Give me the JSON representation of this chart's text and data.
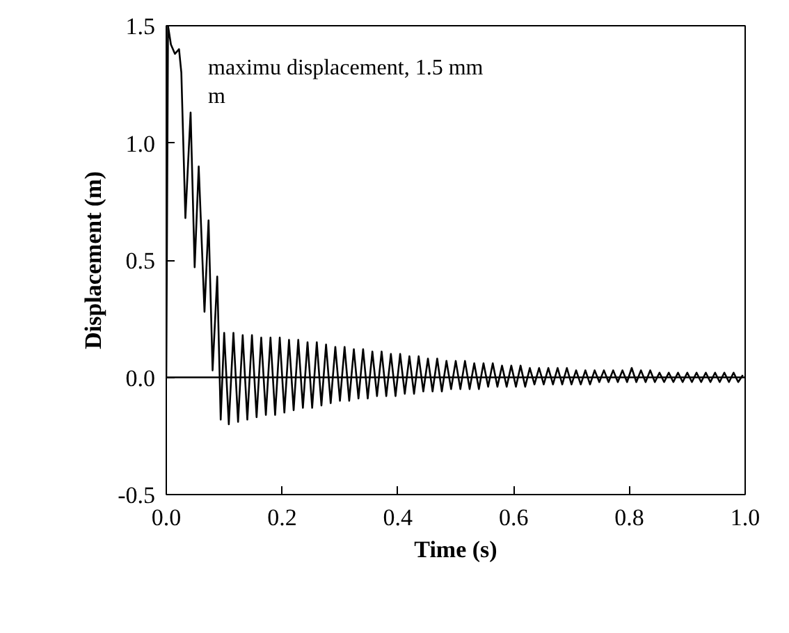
{
  "chart_data": {
    "type": "line",
    "xlabel": "Time (s)",
    "ylabel": "Displacement (m)",
    "annotations": [
      "maximu  displacement,  1.5 mm\nm"
    ],
    "xlim": [
      0,
      1
    ],
    "ylim": [
      -0.5,
      1.5
    ],
    "xticks": [
      {
        "value": 0,
        "label": "0.0"
      },
      {
        "value": 0.2,
        "label": "0.2"
      },
      {
        "value": 0.4,
        "label": "0.4"
      },
      {
        "value": 0.6,
        "label": "0.6"
      },
      {
        "value": 0.8,
        "label": "0.8"
      },
      {
        "value": 1,
        "label": "1.0"
      }
    ],
    "yticks": [
      {
        "value": -0.5,
        "label": "-0.5"
      },
      {
        "value": 0,
        "label": "0.0"
      },
      {
        "value": 0.5,
        "label": "0.5"
      },
      {
        "value": 1,
        "label": "1.0"
      },
      {
        "value": 1.5,
        "label": "1.5"
      }
    ],
    "ref_lines": [
      {
        "axis": "y",
        "value": 0,
        "color": "#000000"
      }
    ],
    "grid": false,
    "marker": "none",
    "line_style": "solid",
    "series": [
      {
        "color": "#000000",
        "x": [
          0,
          0.003,
          0.008,
          0.015,
          0.022,
          0.026,
          0.033,
          0.042,
          0.049,
          0.056,
          0.066,
          0.073,
          0.08,
          0.088,
          0.094,
          0.1,
          0.108,
          0.116,
          0.124,
          0.132,
          0.14,
          0.148,
          0.156,
          0.164,
          0.172,
          0.18,
          0.188,
          0.196,
          0.204,
          0.212,
          0.22,
          0.228,
          0.236,
          0.244,
          0.252,
          0.26,
          0.268,
          0.276,
          0.284,
          0.292,
          0.3,
          0.308,
          0.316,
          0.324,
          0.332,
          0.34,
          0.348,
          0.356,
          0.364,
          0.372,
          0.38,
          0.388,
          0.396,
          0.404,
          0.412,
          0.42,
          0.428,
          0.436,
          0.444,
          0.452,
          0.46,
          0.468,
          0.476,
          0.484,
          0.492,
          0.5,
          0.508,
          0.516,
          0.524,
          0.532,
          0.54,
          0.548,
          0.556,
          0.564,
          0.572,
          0.58,
          0.588,
          0.596,
          0.604,
          0.612,
          0.62,
          0.628,
          0.636,
          0.644,
          0.652,
          0.66,
          0.668,
          0.676,
          0.684,
          0.692,
          0.7,
          0.708,
          0.716,
          0.724,
          0.732,
          0.74,
          0.748,
          0.756,
          0.764,
          0.772,
          0.78,
          0.788,
          0.796,
          0.804,
          0.812,
          0.82,
          0.828,
          0.836,
          0.844,
          0.852,
          0.86,
          0.868,
          0.876,
          0.884,
          0.892,
          0.9,
          0.908,
          0.916,
          0.924,
          0.932,
          0.94,
          0.948,
          0.956,
          0.964,
          0.972,
          0.98,
          0.988,
          0.996
        ],
        "values": [
          0,
          1.5,
          1.42,
          1.38,
          1.4,
          1.3,
          0.68,
          1.13,
          0.47,
          0.9,
          0.28,
          0.67,
          0.03,
          0.43,
          -0.18,
          0.19,
          -0.2,
          0.19,
          -0.19,
          0.18,
          -0.18,
          0.18,
          -0.17,
          0.17,
          -0.16,
          0.17,
          -0.16,
          0.17,
          -0.15,
          0.16,
          -0.14,
          0.16,
          -0.13,
          0.15,
          -0.13,
          0.15,
          -0.12,
          0.14,
          -0.11,
          0.13,
          -0.1,
          0.13,
          -0.1,
          0.12,
          -0.09,
          0.12,
          -0.09,
          0.11,
          -0.08,
          0.11,
          -0.08,
          0.1,
          -0.08,
          0.1,
          -0.07,
          0.09,
          -0.07,
          0.09,
          -0.06,
          0.08,
          -0.06,
          0.08,
          -0.06,
          0.07,
          -0.05,
          0.07,
          -0.05,
          0.07,
          -0.05,
          0.06,
          -0.05,
          0.06,
          -0.04,
          0.06,
          -0.04,
          0.05,
          -0.04,
          0.05,
          -0.04,
          0.05,
          -0.04,
          0.04,
          -0.03,
          0.04,
          -0.03,
          0.04,
          -0.03,
          0.04,
          -0.03,
          0.04,
          -0.03,
          0.03,
          -0.03,
          0.03,
          -0.03,
          0.03,
          -0.02,
          0.03,
          -0.02,
          0.03,
          -0.02,
          0.03,
          -0.02,
          0.04,
          -0.02,
          0.03,
          -0.02,
          0.03,
          -0.02,
          0.02,
          -0.02,
          0.02,
          -0.02,
          0.02,
          -0.02,
          0.02,
          -0.02,
          0.02,
          -0.02,
          0.02,
          -0.02,
          0.02,
          -0.02,
          0.02,
          -0.02,
          0.02,
          -0.02,
          0.01
        ]
      }
    ]
  }
}
